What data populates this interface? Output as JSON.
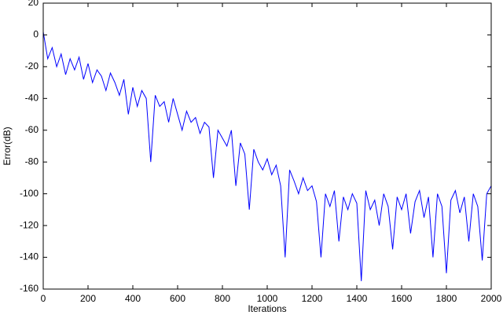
{
  "chart_data": {
    "type": "line",
    "x_label": "Iterations",
    "y_label": "Error(dB)",
    "x": [
      0,
      20,
      40,
      60,
      80,
      100,
      120,
      140,
      160,
      180,
      200,
      220,
      240,
      260,
      280,
      300,
      320,
      340,
      360,
      380,
      400,
      420,
      440,
      460,
      480,
      500,
      520,
      540,
      560,
      580,
      600,
      620,
      640,
      660,
      680,
      700,
      720,
      740,
      760,
      780,
      800,
      820,
      840,
      860,
      880,
      900,
      920,
      940,
      960,
      980,
      1000,
      1020,
      1040,
      1060,
      1080,
      1100,
      1120,
      1140,
      1160,
      1180,
      1200,
      1220,
      1240,
      1260,
      1280,
      1300,
      1320,
      1340,
      1360,
      1380,
      1400,
      1420,
      1440,
      1460,
      1480,
      1500,
      1520,
      1540,
      1560,
      1580,
      1600,
      1620,
      1640,
      1660,
      1680,
      1700,
      1720,
      1740,
      1760,
      1780,
      1800,
      1820,
      1840,
      1860,
      1880,
      1900,
      1920,
      1940,
      1960,
      1980,
      2000
    ],
    "series": [
      {
        "color": "#0000ff",
        "values": [
          2,
          -15,
          -8,
          -20,
          -12,
          -25,
          -15,
          -22,
          -14,
          -28,
          -18,
          -30,
          -22,
          -26,
          -35,
          -24,
          -30,
          -38,
          -28,
          -50,
          -33,
          -45,
          -35,
          -40,
          -80,
          -38,
          -45,
          -42,
          -55,
          -40,
          -50,
          -60,
          -48,
          -55,
          -52,
          -62,
          -55,
          -58,
          -90,
          -60,
          -65,
          -70,
          -60,
          -95,
          -68,
          -75,
          -110,
          -72,
          -80,
          -85,
          -78,
          -88,
          -82,
          -95,
          -140,
          -85,
          -92,
          -100,
          -90,
          -98,
          -95,
          -105,
          -140,
          -100,
          -108,
          -98,
          -130,
          -102,
          -110,
          -100,
          -106,
          -155,
          -98,
          -110,
          -104,
          -120,
          -100,
          -108,
          -135,
          -102,
          -110,
          -100,
          -125,
          -105,
          -98,
          -115,
          -102,
          -140,
          -100,
          -108,
          -150,
          -104,
          -98,
          -112,
          -102,
          -130,
          -100,
          -108,
          -142,
          -100,
          -95
        ]
      }
    ],
    "xlim": [
      0,
      2000
    ],
    "ylim": [
      -160,
      20
    ],
    "xticks": [
      0,
      200,
      400,
      600,
      800,
      1000,
      1200,
      1400,
      1600,
      1800,
      2000
    ],
    "yticks": [
      -160,
      -140,
      -120,
      -100,
      -80,
      -60,
      -40,
      -20,
      0,
      20
    ],
    "grid": false
  }
}
